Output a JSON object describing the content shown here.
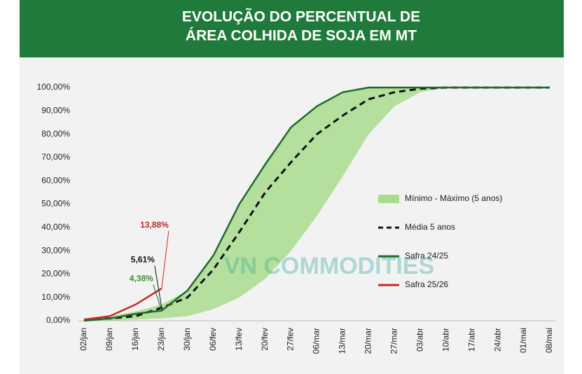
{
  "chart_data": {
    "type": "line",
    "title": [
      "EVOLUÇÃO DO PERCENTUAL DE",
      "ÁREA COLHIDA DE SOJA EM MT"
    ],
    "watermark": "VN COMMODITIES",
    "categories": [
      "02/jan",
      "09/jan",
      "16/jan",
      "23/jan",
      "30/jan",
      "06/fev",
      "13/fev",
      "20/fev",
      "27/fev",
      "06/mar",
      "13/mar",
      "20/mar",
      "27/mar",
      "03/abr",
      "10/abr",
      "17/abr",
      "24/abr",
      "01/mai",
      "08/mai"
    ],
    "ylim": [
      0,
      100
    ],
    "yticks": [
      {
        "value": 0,
        "label": "0,00%"
      },
      {
        "value": 10,
        "label": "10,00%"
      },
      {
        "value": 20,
        "label": "20,00%"
      },
      {
        "value": 30,
        "label": "30,00%"
      },
      {
        "value": 40,
        "label": "40,00%"
      },
      {
        "value": 50,
        "label": "50,00%"
      },
      {
        "value": 60,
        "label": "60,00%"
      },
      {
        "value": 70,
        "label": "70,00%"
      },
      {
        "value": 80,
        "label": "80,00%"
      },
      {
        "value": 90,
        "label": "90,00%"
      },
      {
        "value": 100,
        "label": "100,00%"
      }
    ],
    "legend": "right",
    "series": [
      {
        "name": "Mínimo - Máximo (5 anos)",
        "kind": "band",
        "color": "#a9dc8e",
        "values": [
          1,
          2,
          4,
          7,
          13,
          28,
          50,
          68,
          83,
          92,
          98,
          100,
          100,
          100,
          100,
          100,
          100,
          100,
          100
        ],
        "lower": [
          0,
          0,
          0.5,
          1,
          2,
          5,
          10,
          18,
          30,
          45,
          62,
          80,
          92,
          98,
          100,
          100,
          100,
          100,
          100
        ]
      },
      {
        "name": "Média 5 anos",
        "kind": "dashed",
        "color": "#111111",
        "values": [
          0.5,
          1,
          2,
          5.61,
          10,
          22,
          38,
          55,
          68,
          80,
          88,
          95,
          98,
          99.5,
          100,
          100,
          100,
          100,
          100
        ],
        "value_labels": [
          null,
          null,
          null,
          "5,61%",
          null,
          null,
          null,
          null,
          null,
          null,
          null,
          null,
          null,
          null,
          null,
          null,
          null,
          null,
          null
        ]
      },
      {
        "name": "Safra 24/25",
        "kind": "line",
        "color": "#1f6b2a",
        "values": [
          0,
          1,
          3,
          4.38,
          13,
          28,
          50,
          67,
          83,
          92,
          98,
          100,
          100,
          100,
          100,
          100,
          100,
          100,
          100
        ],
        "value_labels": [
          null,
          null,
          null,
          "4,38%",
          null,
          null,
          null,
          null,
          null,
          null,
          null,
          null,
          null,
          null,
          null,
          null,
          null,
          null,
          null
        ],
        "label_color": "#3f8f2f"
      },
      {
        "name": "Safra 25/26",
        "kind": "line",
        "color": "#c62828",
        "values": [
          0.5,
          2,
          7,
          13.88,
          null,
          null,
          null,
          null,
          null,
          null,
          null,
          null,
          null,
          null,
          null,
          null,
          null,
          null,
          null
        ],
        "value_labels": [
          null,
          null,
          null,
          "13,88%",
          null,
          null,
          null,
          null,
          null,
          null,
          null,
          null,
          null,
          null,
          null,
          null,
          null,
          null,
          null
        ],
        "label_color": "#c62828"
      }
    ]
  }
}
